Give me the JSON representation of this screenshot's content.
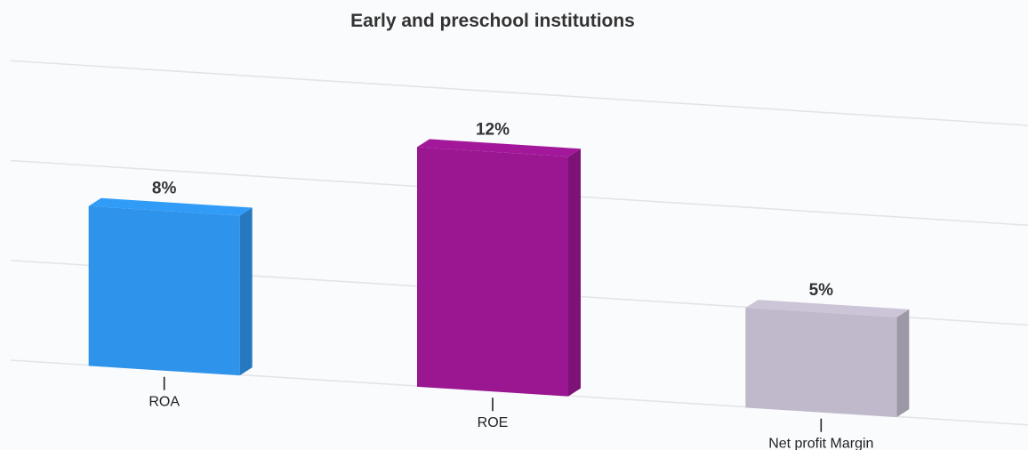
{
  "chart_data": {
    "type": "bar",
    "title": "Early and preschool institutions",
    "categories": [
      "ROA",
      "ROE",
      "Net profit Margin"
    ],
    "values": [
      8,
      12,
      5
    ],
    "value_labels": [
      "8%",
      "12%",
      "5%"
    ],
    "colors": [
      "#2e93ea",
      "#9a1791",
      "#c0b9cb"
    ],
    "ylim": [
      0,
      15
    ],
    "grid": true,
    "legend": "none"
  }
}
